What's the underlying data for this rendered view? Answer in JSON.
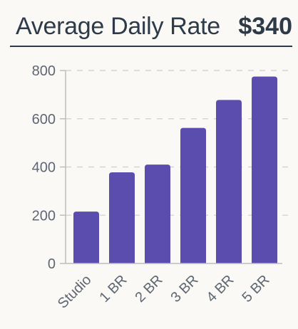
{
  "header": {
    "title": "Average Daily Rate",
    "value": "$340"
  },
  "colors": {
    "bar": "#5b4dad",
    "grid": "#d6d6d6",
    "axis": "#bdbdbd",
    "text": "#2f3a48"
  },
  "chart_data": {
    "type": "bar",
    "categories": [
      "Studio",
      "1 BR",
      "2 BR",
      "3 BR",
      "4 BR",
      "5 BR"
    ],
    "values": [
      215,
      378,
      410,
      562,
      678,
      775
    ],
    "ylim": [
      0,
      800
    ],
    "yticks": [
      "0",
      "200",
      "400",
      "600",
      "800"
    ],
    "grid": true,
    "xlabel": "",
    "ylabel": ""
  }
}
